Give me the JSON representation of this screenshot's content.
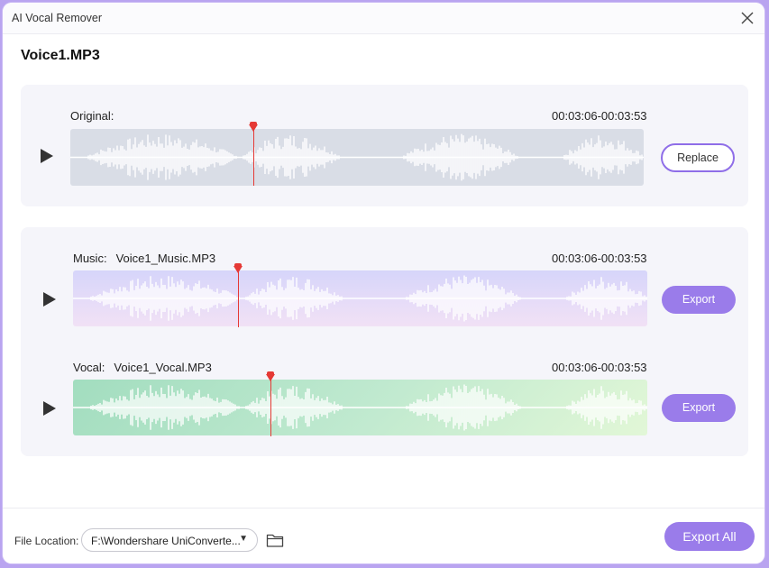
{
  "window": {
    "title": "AI Vocal Remover"
  },
  "file_title": "Voice1.MP3",
  "original": {
    "label": "Original:",
    "timecode": "00:03:06-00:03:53",
    "button": "Replace"
  },
  "music": {
    "label": "Music:",
    "filename": "Voice1_Music.MP3",
    "timecode": "00:03:06-00:03:53",
    "button": "Export"
  },
  "vocal": {
    "label": "Vocal:",
    "filename": "Voice1_Vocal.MP3",
    "timecode": "00:03:06-00:03:53",
    "button": "Export"
  },
  "footer": {
    "location_label": "File Location:",
    "location_value": "F:\\Wondershare UniConverte...",
    "export_all": "Export All"
  },
  "colors": {
    "accent": "#9a7cea",
    "playhead": "#e53935",
    "wave_original_bg": "#d9dde6"
  },
  "icons": [
    "close-icon",
    "play-icon",
    "chevron-down-icon",
    "folder-icon"
  ]
}
